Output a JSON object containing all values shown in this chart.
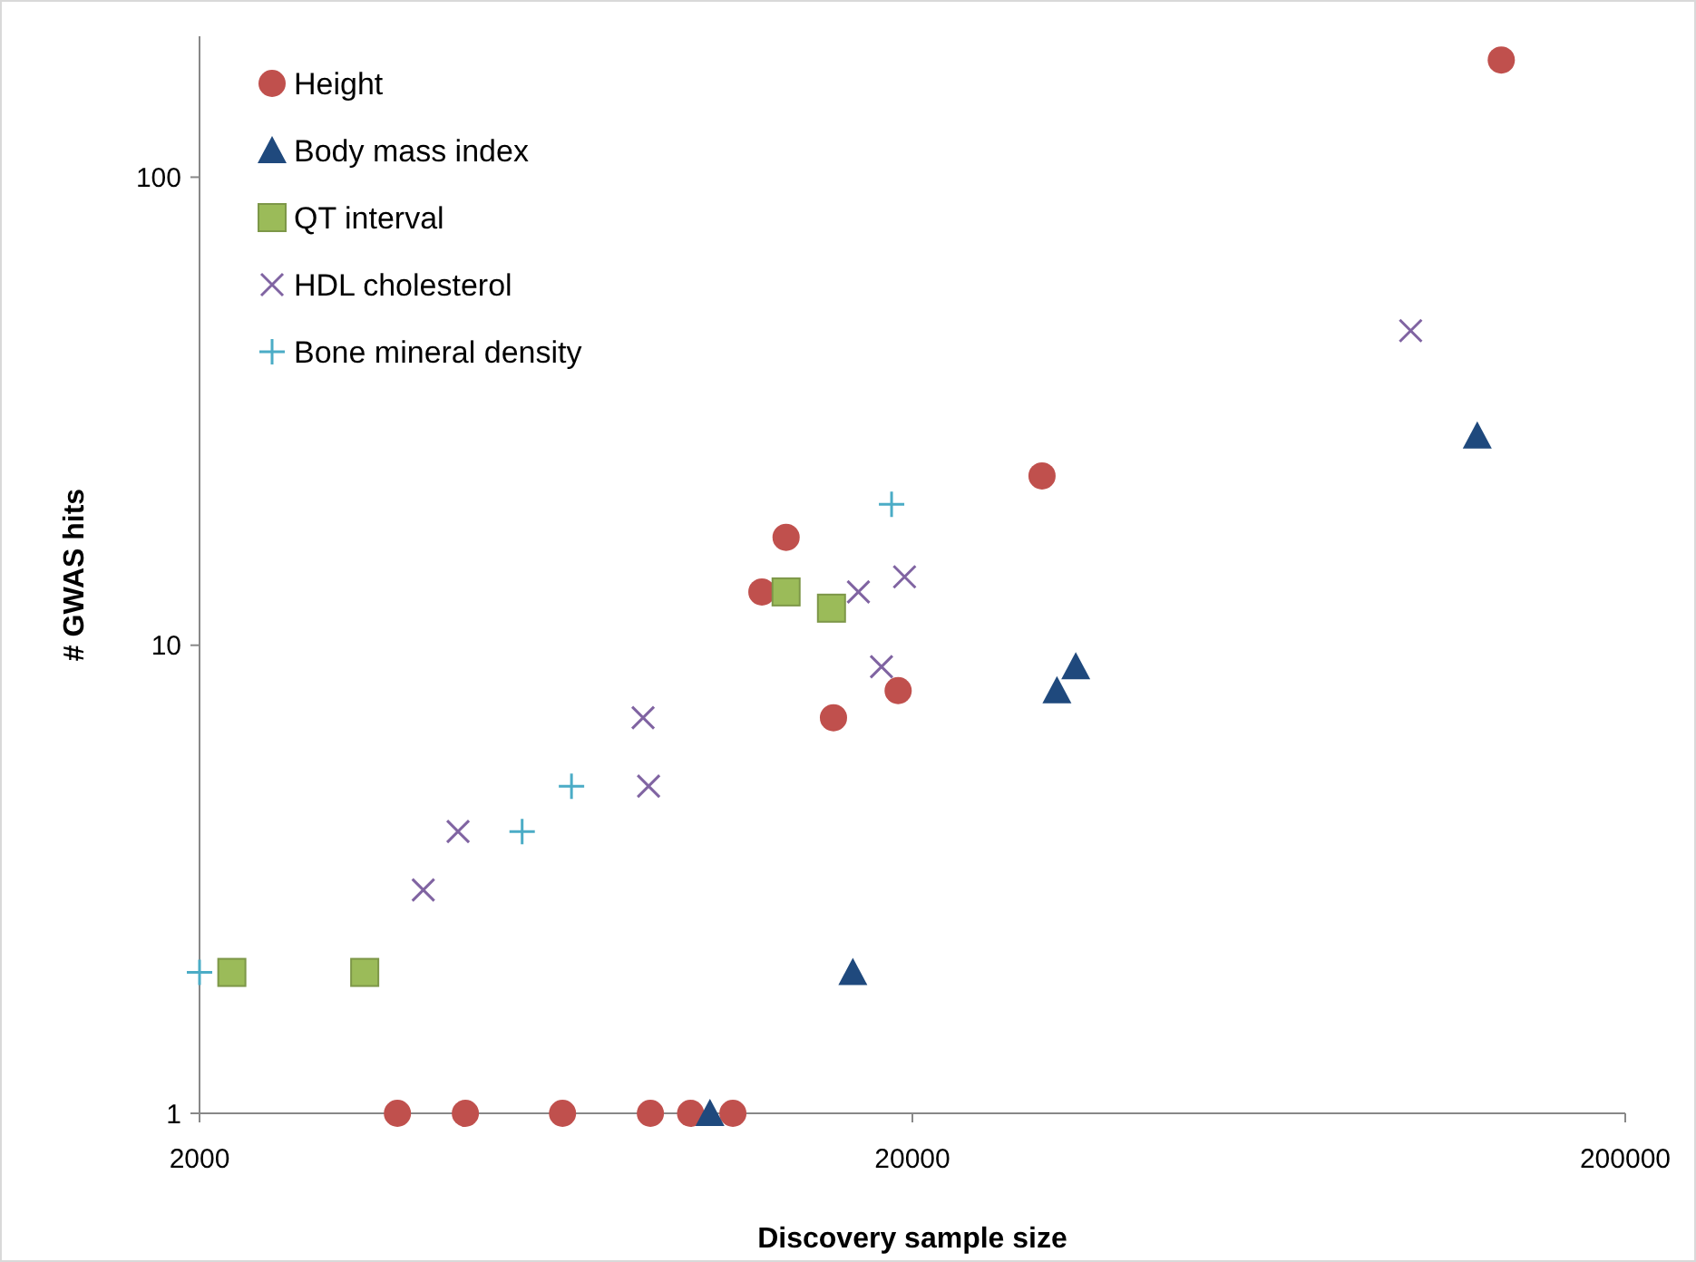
{
  "chart_data": {
    "type": "scatter",
    "xlabel": "Discovery sample size",
    "ylabel": "# GWAS hits",
    "log": "xy",
    "xlim": [
      2000,
      200000
    ],
    "xticks": [
      2000,
      20000,
      200000
    ],
    "ylim": [
      1,
      200
    ],
    "yticks": [
      1,
      10,
      100
    ],
    "grid": false,
    "legend": "top left",
    "series": [
      {
        "name": "Height",
        "color": "#c0504d",
        "marker": "circle",
        "x": [
          3790,
          4720,
          6460,
          8580,
          9770,
          11200,
          12300,
          13300,
          15500,
          19100,
          30400,
          134000
        ],
        "values": [
          1,
          1,
          1,
          1,
          1,
          1,
          13,
          17,
          7,
          8,
          23,
          178
        ]
      },
      {
        "name": "Body mass  index",
        "color": "#1f497d",
        "marker": "triangle",
        "x": [
          10400,
          16500,
          31900,
          33900,
          124000
        ],
        "values": [
          1,
          2,
          8,
          9,
          28
        ]
      },
      {
        "name": "QT interval",
        "color": "#9bbb59",
        "marker": "square",
        "x": [
          2220,
          3410,
          13300,
          15400
        ],
        "values": [
          2,
          2,
          13,
          12
        ]
      },
      {
        "name": "HDL cholesterol",
        "color": "#8064a2",
        "marker": "cross",
        "x": [
          4120,
          4610,
          8380,
          8530,
          16800,
          18100,
          19500,
          100000
        ],
        "values": [
          3,
          4,
          7,
          5,
          13,
          9,
          14,
          47
        ]
      },
      {
        "name": "Bone mineral density",
        "color": "#4bacc6",
        "marker": "plus",
        "x": [
          2000,
          5670,
          6650,
          18700
        ],
        "values": [
          2,
          4,
          5,
          20
        ]
      }
    ]
  }
}
